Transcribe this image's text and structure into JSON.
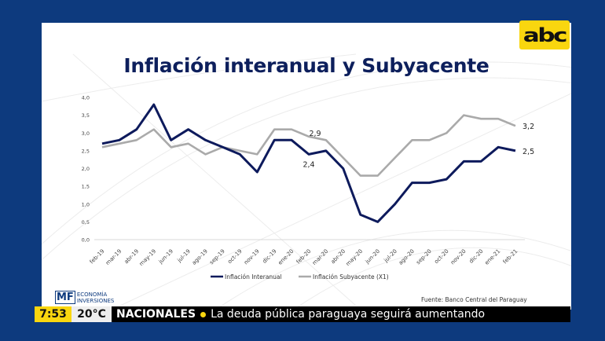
{
  "slide": {
    "title": "Inflación interanual y Subyacente",
    "source": "Fuente: Banco Central del Paraguay"
  },
  "broadcaster": {
    "logo_text": "abc",
    "program_logo_mark": "MF",
    "program_logo_line1": "ECONOMÍA",
    "program_logo_line2": "INVERSIONES"
  },
  "ticker": {
    "time": "7:53",
    "temperature": "20°C",
    "section": "NACIONALES",
    "headline": "La deuda pública paraguaya seguirá aumentando"
  },
  "colors": {
    "background": "#0d3a7e",
    "accent_yellow": "#f9d60f",
    "series_interanual": "#0d1a5c",
    "series_subyacente": "#aaaaaa"
  },
  "chart_data": {
    "type": "line",
    "title": "Inflación interanual y Subyacente",
    "xlabel": "",
    "ylabel": "",
    "ylim": [
      0,
      4
    ],
    "yticks": [
      "0,0",
      "0,5",
      "1,0",
      "1,5",
      "2,0",
      "2,5",
      "3,0",
      "3,5",
      "4,0"
    ],
    "ytick_values": [
      0,
      0.5,
      1,
      1.5,
      2,
      2.5,
      3,
      3.5,
      4
    ],
    "grid": false,
    "legend_position": "bottom",
    "categories": [
      "feb-19",
      "mar-19",
      "abr-19",
      "may-19",
      "jun-19",
      "jul-19",
      "ago-19",
      "sep-19",
      "oct-19",
      "nov-19",
      "dic-19",
      "ene-20",
      "feb-20",
      "mar-20",
      "abr-20",
      "may-20",
      "jun-20",
      "jul-20",
      "ago-20",
      "sep-20",
      "oct-20",
      "nov-20",
      "dic-20",
      "ene-21",
      "feb-21"
    ],
    "series": [
      {
        "name": "Inflación Interanual",
        "color": "#0d1a5c",
        "values": [
          2.7,
          2.8,
          3.1,
          3.8,
          2.8,
          3.1,
          2.8,
          2.6,
          2.4,
          1.9,
          2.8,
          2.8,
          2.4,
          2.5,
          2.0,
          0.7,
          0.5,
          1.0,
          1.6,
          1.6,
          1.7,
          2.2,
          2.2,
          2.6,
          2.5
        ]
      },
      {
        "name": "Inflación Subyacente (X1)",
        "color": "#aaaaaa",
        "values": [
          2.6,
          2.7,
          2.8,
          3.1,
          2.6,
          2.7,
          2.4,
          2.6,
          2.5,
          2.4,
          3.1,
          3.1,
          2.9,
          2.8,
          2.3,
          1.8,
          1.8,
          2.3,
          2.8,
          2.8,
          3.0,
          3.5,
          3.4,
          3.4,
          3.2
        ]
      }
    ],
    "annotations": [
      {
        "series": 0,
        "category": "feb-20",
        "text": "2,4"
      },
      {
        "series": 1,
        "category": "feb-20",
        "text": "2,9"
      },
      {
        "series": 0,
        "category": "feb-21",
        "text": "2,5"
      },
      {
        "series": 1,
        "category": "feb-21",
        "text": "3,2"
      }
    ]
  }
}
